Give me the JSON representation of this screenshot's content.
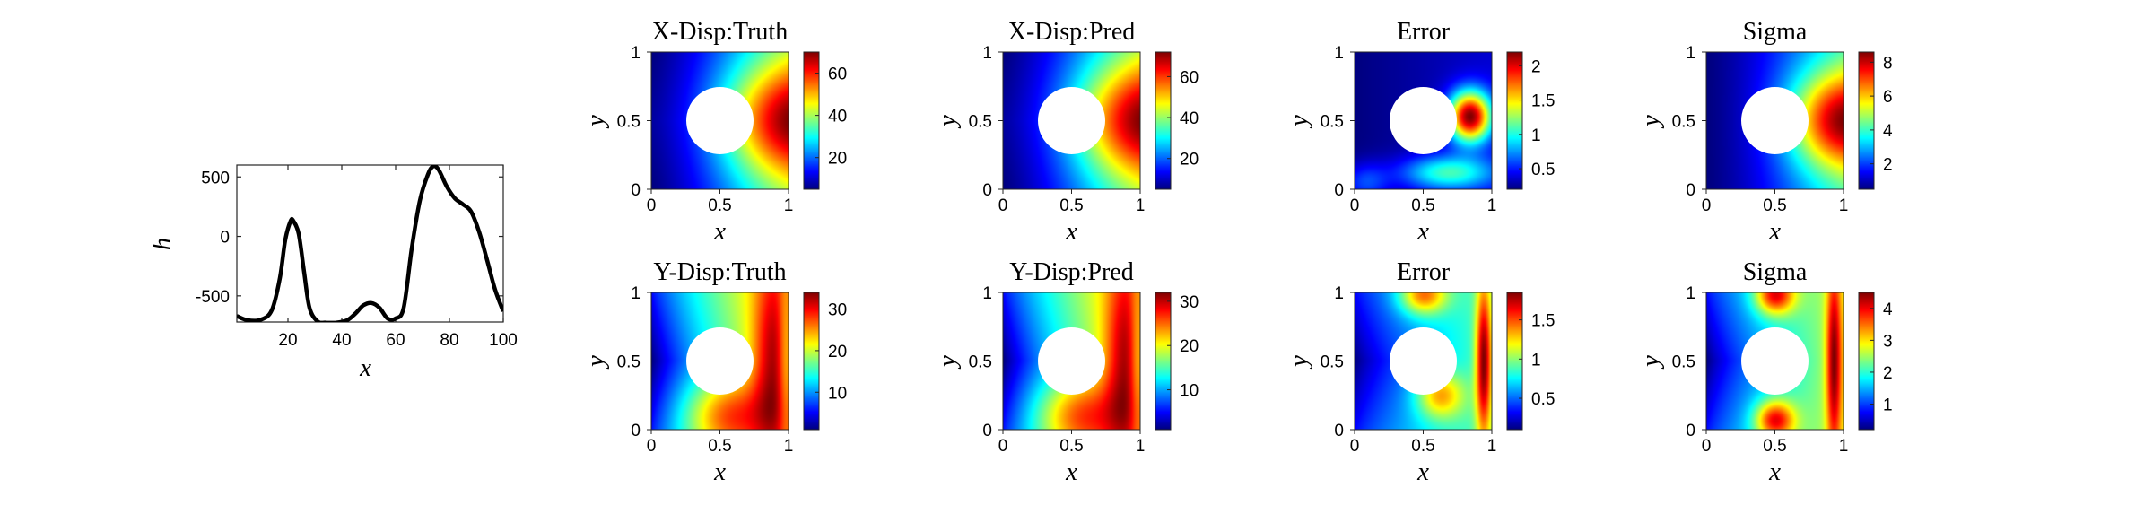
{
  "chart_data": [
    {
      "type": "line",
      "title": "",
      "xlabel": "x",
      "ylabel": "h",
      "xlim": [
        1,
        100
      ],
      "ylim": [
        -720,
        600
      ],
      "xticks": [
        20,
        40,
        60,
        80,
        100
      ],
      "yticks": [
        500,
        0,
        -500
      ],
      "ytick_labels": [
        "500",
        "0",
        "-500"
      ],
      "series": [
        {
          "color": "#000000",
          "x": [
            1,
            5,
            10,
            14,
            17,
            19,
            21,
            22,
            24,
            26,
            28,
            31,
            34,
            38,
            42,
            45,
            48,
            51,
            54,
            57,
            60,
            63,
            66,
            69,
            72,
            74,
            76,
            79,
            82,
            85,
            88,
            91,
            94,
            97,
            100
          ],
          "y": [
            -670,
            -705,
            -700,
            -620,
            -350,
            -30,
            130,
            130,
            20,
            -300,
            -600,
            -715,
            -725,
            -725,
            -705,
            -650,
            -580,
            -560,
            -600,
            -690,
            -690,
            -600,
            -100,
            300,
            520,
            590,
            560,
            420,
            320,
            270,
            210,
            40,
            -200,
            -450,
            -630
          ]
        }
      ]
    },
    {
      "type": "heatmap",
      "title": "X-Disp:Truth",
      "xlabel": "x",
      "ylabel": "y",
      "field": "x-disp",
      "xlim": [
        0,
        1
      ],
      "ylim": [
        0,
        1
      ],
      "xticks": [
        "0",
        "0.5",
        "1"
      ],
      "yticks": [
        "0",
        "0.5",
        "1"
      ],
      "colorbar": {
        "min": 5,
        "max": 70,
        "ticks": [
          20,
          40,
          60
        ],
        "colormap": "jet"
      }
    },
    {
      "type": "heatmap",
      "title": "X-Disp:Pred",
      "xlabel": "x",
      "ylabel": "y",
      "field": "x-disp",
      "xlim": [
        0,
        1
      ],
      "ylim": [
        0,
        1
      ],
      "xticks": [
        "0",
        "0.5",
        "1"
      ],
      "yticks": [
        "0",
        "0.5",
        "1"
      ],
      "colorbar": {
        "min": 5,
        "max": 72,
        "ticks": [
          20,
          40,
          60
        ],
        "colormap": "jet"
      }
    },
    {
      "type": "heatmap",
      "title": "Error",
      "xlabel": "x",
      "ylabel": "y",
      "field": "x-error",
      "xlim": [
        0,
        1
      ],
      "ylim": [
        0,
        1
      ],
      "xticks": [
        "0",
        "0.5",
        "1"
      ],
      "yticks": [
        "0",
        "0.5",
        "1"
      ],
      "colorbar": {
        "min": 0.2,
        "max": 2.2,
        "ticks": [
          0.5,
          1,
          1.5,
          2
        ],
        "colormap": "jet"
      }
    },
    {
      "type": "heatmap",
      "title": "Sigma",
      "xlabel": "x",
      "ylabel": "y",
      "field": "x-sigma",
      "xlim": [
        0,
        1
      ],
      "ylim": [
        0,
        1
      ],
      "xticks": [
        "0",
        "0.5",
        "1"
      ],
      "yticks": [
        "0",
        "0.5",
        "1"
      ],
      "colorbar": {
        "min": 0.5,
        "max": 8.6,
        "ticks": [
          2,
          4,
          6,
          8
        ],
        "colormap": "jet"
      }
    },
    {
      "type": "heatmap",
      "title": "Y-Disp:Truth",
      "xlabel": "x",
      "ylabel": "y",
      "field": "y-disp",
      "xlim": [
        0,
        1
      ],
      "ylim": [
        0,
        1
      ],
      "xticks": [
        "0",
        "0.5",
        "1"
      ],
      "yticks": [
        "0",
        "0.5",
        "1"
      ],
      "colorbar": {
        "min": 1,
        "max": 34,
        "ticks": [
          10,
          20,
          30
        ],
        "colormap": "jet"
      }
    },
    {
      "type": "heatmap",
      "title": "Y-Disp:Pred",
      "xlabel": "x",
      "ylabel": "y",
      "field": "y-disp",
      "xlim": [
        0,
        1
      ],
      "ylim": [
        0,
        1
      ],
      "xticks": [
        "0",
        "0.5",
        "1"
      ],
      "yticks": [
        "0",
        "0.5",
        "1"
      ],
      "colorbar": {
        "min": 1,
        "max": 32,
        "ticks": [
          10,
          20,
          30
        ],
        "colormap": "jet"
      }
    },
    {
      "type": "heatmap",
      "title": "Error",
      "xlabel": "x",
      "ylabel": "y",
      "field": "y-error",
      "xlim": [
        0,
        1
      ],
      "ylim": [
        0,
        1
      ],
      "xticks": [
        "0",
        "0.5",
        "1"
      ],
      "yticks": [
        "0",
        "0.5",
        "1"
      ],
      "colorbar": {
        "min": 0.1,
        "max": 1.85,
        "ticks": [
          0.5,
          1,
          1.5
        ],
        "colormap": "jet"
      }
    },
    {
      "type": "heatmap",
      "title": "Sigma",
      "xlabel": "x",
      "ylabel": "y",
      "field": "y-sigma",
      "xlim": [
        0,
        1
      ],
      "ylim": [
        0,
        1
      ],
      "xticks": [
        "0",
        "0.5",
        "1"
      ],
      "yticks": [
        "0",
        "0.5",
        "1"
      ],
      "colorbar": {
        "min": 0.2,
        "max": 4.5,
        "ticks": [
          1,
          2,
          3,
          4
        ],
        "colormap": "jet"
      }
    }
  ]
}
